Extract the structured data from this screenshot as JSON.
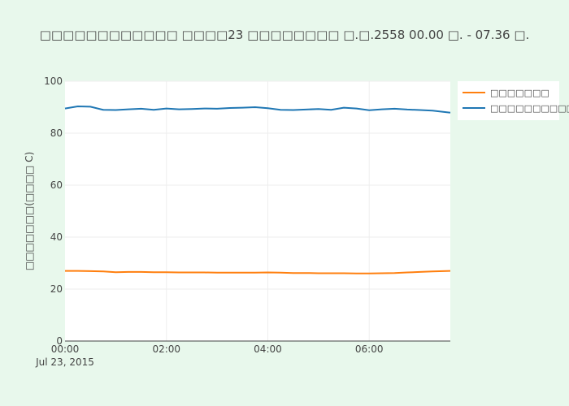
{
  "chart_data": {
    "type": "line",
    "title": "□□□□□□□□□□□□ □□□□23 □□□□□□□□ □.□.2558  00.00 □. - 07.36 □.",
    "xlabel": "",
    "ylabel": "□□□□□□□(□□□□ C)",
    "xlim": [
      "00:00",
      "07:36"
    ],
    "x_ticks": [
      "00:00",
      "02:00",
      "04:00",
      "06:00"
    ],
    "x_date_label": "Jul 23, 2015",
    "ylim": [
      0,
      100
    ],
    "y_ticks": [
      0,
      20,
      40,
      60,
      80,
      100
    ],
    "grid": true,
    "legend_position": "top-right",
    "x": [
      "00:00",
      "00:15",
      "00:30",
      "00:45",
      "01:00",
      "01:15",
      "01:30",
      "01:45",
      "02:00",
      "02:15",
      "02:30",
      "02:45",
      "03:00",
      "03:15",
      "03:30",
      "03:45",
      "04:00",
      "04:15",
      "04:30",
      "04:45",
      "05:00",
      "05:15",
      "05:30",
      "05:45",
      "06:00",
      "06:15",
      "06:30",
      "06:45",
      "07:00",
      "07:15",
      "07:36"
    ],
    "series": [
      {
        "name": "□□□□□□□",
        "color": "#ff7f0e",
        "values": [
          27.0,
          27.0,
          26.9,
          26.8,
          26.5,
          26.6,
          26.6,
          26.5,
          26.5,
          26.4,
          26.4,
          26.4,
          26.3,
          26.3,
          26.3,
          26.3,
          26.4,
          26.3,
          26.2,
          26.2,
          26.1,
          26.1,
          26.1,
          26.0,
          26.0,
          26.1,
          26.2,
          26.4,
          26.6,
          26.8,
          27.0
        ]
      },
      {
        "name": "□□□□□□□□□□□□□□□",
        "color": "#1f77b4",
        "values": [
          89.5,
          90.3,
          90.2,
          89.0,
          88.9,
          89.2,
          89.4,
          89.0,
          89.5,
          89.2,
          89.3,
          89.5,
          89.4,
          89.7,
          89.8,
          90.0,
          89.6,
          89.0,
          88.9,
          89.1,
          89.3,
          89.0,
          89.8,
          89.5,
          88.8,
          89.2,
          89.4,
          89.1,
          88.9,
          88.7,
          87.9
        ]
      }
    ]
  }
}
